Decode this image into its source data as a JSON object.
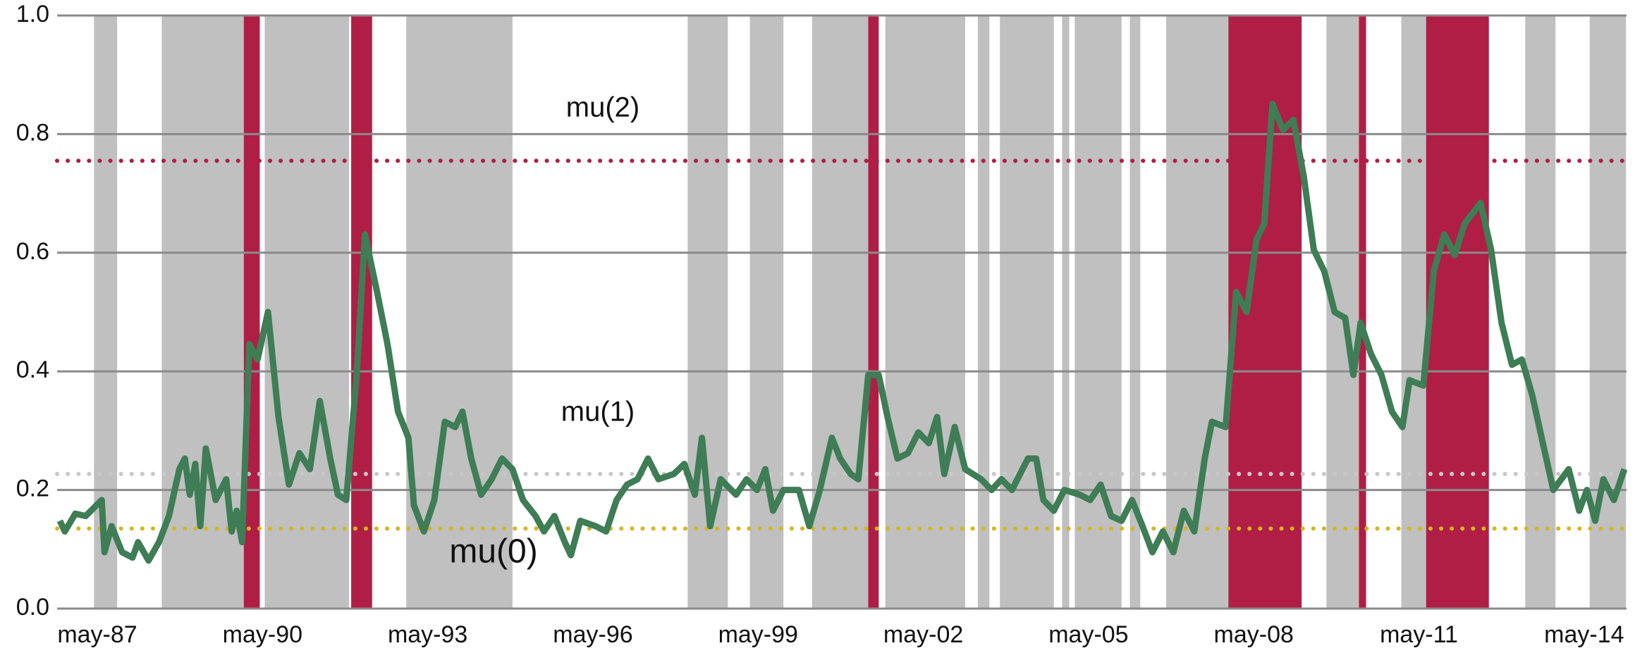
{
  "chart_data": {
    "type": "line",
    "color": "#3e7d55",
    "x": [
      1986.65,
      1986.74,
      1986.93,
      1987.12,
      1987.31,
      1987.41,
      1987.46,
      1987.59,
      1987.78,
      1987.97,
      1988.07,
      1988.26,
      1988.45,
      1988.63,
      1988.82,
      1988.92,
      1989.01,
      1989.11,
      1989.2,
      1989.3,
      1989.48,
      1989.67,
      1989.77,
      1989.86,
      1989.96,
      1990.09,
      1990.24,
      1990.43,
      1990.62,
      1990.81,
      1991.0,
      1991.19,
      1991.37,
      1991.56,
      1991.7,
      1991.85,
      1992.04,
      1992.19,
      1992.41,
      1992.6,
      1992.79,
      1992.98,
      1993.08,
      1993.26,
      1993.45,
      1993.64,
      1993.83,
      1993.96,
      1994.12,
      1994.3,
      1994.49,
      1994.68,
      1994.87,
      1995.06,
      1995.29,
      1995.44,
      1995.63,
      1995.82,
      1995.93,
      1996.1,
      1996.38,
      1996.57,
      1996.76,
      1996.95,
      1997.14,
      1997.33,
      1997.52,
      1997.8,
      1997.99,
      1998.18,
      1998.31,
      1998.46,
      1998.65,
      1998.93,
      1999.12,
      1999.31,
      1999.46,
      1999.6,
      1999.79,
      2000.07,
      2000.26,
      2000.45,
      2000.67,
      2000.82,
      2001.01,
      2001.15,
      2001.33,
      2001.52,
      2001.68,
      2001.86,
      2002.05,
      2002.24,
      2002.43,
      2002.58,
      2002.71,
      2002.9,
      2003.09,
      2003.38,
      2003.57,
      2003.75,
      2003.94,
      2004.23,
      2004.38,
      2004.51,
      2004.7,
      2004.89,
      2005.17,
      2005.36,
      2005.55,
      2005.74,
      2005.93,
      2006.12,
      2006.31,
      2006.49,
      2006.68,
      2006.87,
      2007.06,
      2007.25,
      2007.44,
      2007.57,
      2007.82,
      2008.01,
      2008.2,
      2008.38,
      2008.52,
      2008.67,
      2008.86,
      2009.05,
      2009.24,
      2009.42,
      2009.61,
      2009.8,
      2009.99,
      2010.14,
      2010.27,
      2010.46,
      2010.65,
      2010.84,
      2011.03,
      2011.16,
      2011.41,
      2011.6,
      2011.79,
      2011.98,
      2012.16,
      2012.45,
      2012.64,
      2012.83,
      2013.02,
      2013.2,
      2013.39,
      2013.58,
      2013.77,
      2014.05,
      2014.24,
      2014.38,
      2014.53,
      2014.68,
      2014.87,
      2015.06
    ],
    "values": [
      0.148,
      0.13,
      0.16,
      0.156,
      0.174,
      0.183,
      0.095,
      0.139,
      0.095,
      0.086,
      0.112,
      0.081,
      0.112,
      0.156,
      0.235,
      0.253,
      0.192,
      0.244,
      0.139,
      0.27,
      0.183,
      0.218,
      0.13,
      0.165,
      0.112,
      0.446,
      0.42,
      0.5,
      0.323,
      0.209,
      0.262,
      0.235,
      0.35,
      0.253,
      0.192,
      0.183,
      0.394,
      0.631,
      0.534,
      0.446,
      0.332,
      0.288,
      0.174,
      0.13,
      0.183,
      0.315,
      0.306,
      0.332,
      0.253,
      0.192,
      0.218,
      0.253,
      0.235,
      0.183,
      0.156,
      0.13,
      0.156,
      0.112,
      0.09,
      0.148,
      0.139,
      0.13,
      0.183,
      0.209,
      0.218,
      0.253,
      0.218,
      0.227,
      0.244,
      0.192,
      0.288,
      0.139,
      0.218,
      0.192,
      0.218,
      0.2,
      0.235,
      0.165,
      0.2,
      0.2,
      0.139,
      0.2,
      0.288,
      0.253,
      0.227,
      0.218,
      0.394,
      0.394,
      0.323,
      0.253,
      0.262,
      0.297,
      0.279,
      0.323,
      0.227,
      0.306,
      0.235,
      0.218,
      0.2,
      0.218,
      0.2,
      0.253,
      0.253,
      0.183,
      0.165,
      0.2,
      0.192,
      0.183,
      0.209,
      0.156,
      0.148,
      0.183,
      0.139,
      0.095,
      0.13,
      0.095,
      0.165,
      0.13,
      0.253,
      0.315,
      0.306,
      0.534,
      0.5,
      0.622,
      0.649,
      0.851,
      0.807,
      0.824,
      0.728,
      0.605,
      0.569,
      0.5,
      0.49,
      0.394,
      0.482,
      0.429,
      0.394,
      0.332,
      0.306,
      0.385,
      0.376,
      0.569,
      0.631,
      0.596,
      0.649,
      0.684,
      0.605,
      0.482,
      0.411,
      0.42,
      0.359,
      0.279,
      0.2,
      0.235,
      0.165,
      0.2,
      0.148,
      0.218,
      0.183,
      0.235
    ],
    "bands": [
      {
        "color": "#c0c0c0",
        "spans": [
          [
            1987.27,
            1987.69
          ],
          [
            1988.5,
            1989.99
          ],
          [
            1990.37,
            1991.9
          ],
          [
            1992.94,
            1994.87
          ],
          [
            1998.05,
            1998.78
          ],
          [
            1999.18,
            1999.79
          ],
          [
            2000.31,
            2001.33
          ],
          [
            2001.64,
            2003.09
          ],
          [
            2003.32,
            2003.53
          ],
          [
            2003.72,
            2004.7
          ],
          [
            2004.85,
            2004.98
          ],
          [
            2005.08,
            2005.93
          ],
          [
            2006.08,
            2006.27
          ],
          [
            2006.74,
            2007.87
          ],
          [
            2009.65,
            2010.24
          ],
          [
            2011.01,
            2011.46
          ],
          [
            2013.26,
            2013.81
          ],
          [
            2014.43,
            2015.09
          ]
        ]
      },
      {
        "color": "#b01e45",
        "spans": [
          [
            1989.99,
            1990.28
          ],
          [
            1991.94,
            1992.32
          ],
          [
            2001.33,
            2001.52
          ],
          [
            2007.87,
            2009.2
          ],
          [
            2010.24,
            2010.37
          ],
          [
            2011.46,
            2012.6
          ]
        ]
      }
    ],
    "reference_lines": [
      {
        "label": "mu(2)",
        "value": 0.755,
        "color": "#b01e45"
      },
      {
        "label": "mu(1)",
        "value": 0.227,
        "color": "#c8c8c8"
      },
      {
        "label": "mu(0)",
        "value": 0.135,
        "color": "#d6b520"
      }
    ],
    "xlim": [
      1986.6,
      2015.1
    ],
    "ylim": [
      0,
      1
    ],
    "xticks": [
      {
        "value": 1987.33,
        "label": "may-87"
      },
      {
        "value": 1990.33,
        "label": "may-90"
      },
      {
        "value": 1993.33,
        "label": "may-93"
      },
      {
        "value": 1996.33,
        "label": "may-96"
      },
      {
        "value": 1999.33,
        "label": "may-99"
      },
      {
        "value": 2002.33,
        "label": "may-02"
      },
      {
        "value": 2005.33,
        "label": "may-05"
      },
      {
        "value": 2008.33,
        "label": "may-08"
      },
      {
        "value": 2011.33,
        "label": "may-11"
      },
      {
        "value": 2014.33,
        "label": "may-14"
      }
    ],
    "yticks": [
      {
        "value": 0,
        "label": "0.0"
      },
      0.2,
      0.4,
      0.6,
      0.8,
      {
        "value": 1,
        "label": "1.0"
      }
    ],
    "grid": true
  }
}
